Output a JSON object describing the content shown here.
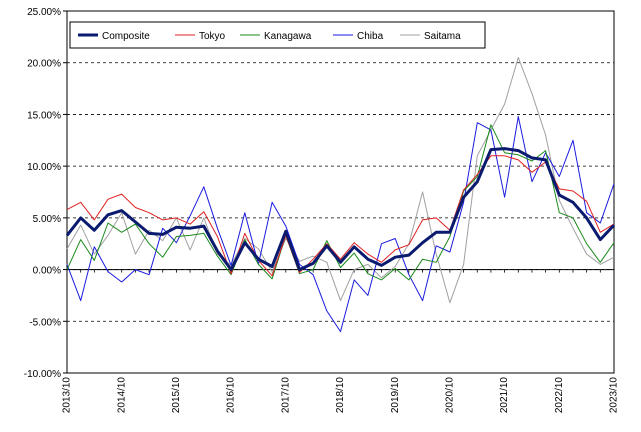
{
  "chart_data": {
    "type": "line",
    "title": "",
    "xlabel": "",
    "ylabel": "",
    "ylim": [
      -10,
      25
    ],
    "yticks": [
      -10,
      -5,
      0,
      5,
      10,
      15,
      20,
      25
    ],
    "ytick_labels": [
      "-10.00%",
      "-5.00%",
      "0.00%",
      "5.00%",
      "10.00%",
      "15.00%",
      "20.00%",
      "25.00%"
    ],
    "xlim": [
      "2013-10",
      "2023-10"
    ],
    "xtick_labels": [
      "2013/10",
      "2014/10",
      "2015/10",
      "2016/10",
      "2017/10",
      "2018/10",
      "2019/10",
      "2020/10",
      "2021/10",
      "2022/10",
      "2023/10"
    ],
    "grid": "horizontal dashed",
    "legend_position": "top-left",
    "series": [
      {
        "name": "Composite",
        "color": "#0a1a6e",
        "points": [
          [
            "2013-10",
            3.3
          ],
          [
            "2014-01",
            5.0
          ],
          [
            "2014-04",
            3.8
          ],
          [
            "2014-07",
            5.3
          ],
          [
            "2014-10",
            5.7
          ],
          [
            "2015-01",
            4.6
          ],
          [
            "2015-04",
            3.5
          ],
          [
            "2015-07",
            3.4
          ],
          [
            "2015-10",
            4.1
          ],
          [
            "2016-01",
            4.0
          ],
          [
            "2016-04",
            4.2
          ],
          [
            "2016-07",
            1.8
          ],
          [
            "2016-10",
            0.0
          ],
          [
            "2017-01",
            2.6
          ],
          [
            "2017-04",
            1.0
          ],
          [
            "2017-07",
            0.3
          ],
          [
            "2017-10",
            3.7
          ],
          [
            "2018-01",
            0.0
          ],
          [
            "2018-04",
            0.6
          ],
          [
            "2018-07",
            2.3
          ],
          [
            "2018-10",
            0.7
          ],
          [
            "2019-01",
            2.2
          ],
          [
            "2019-04",
            1.0
          ],
          [
            "2019-07",
            0.4
          ],
          [
            "2019-10",
            1.2
          ],
          [
            "2020-01",
            1.4
          ],
          [
            "2020-04",
            2.6
          ],
          [
            "2020-07",
            3.6
          ],
          [
            "2020-10",
            3.6
          ],
          [
            "2021-01",
            7.0
          ],
          [
            "2021-04",
            8.5
          ],
          [
            "2021-07",
            11.6
          ],
          [
            "2021-10",
            11.7
          ],
          [
            "2022-01",
            11.5
          ],
          [
            "2022-04",
            10.8
          ],
          [
            "2022-07",
            10.6
          ],
          [
            "2022-10",
            7.2
          ],
          [
            "2023-01",
            6.5
          ],
          [
            "2023-04",
            5.0
          ],
          [
            "2023-07",
            2.9
          ],
          [
            "2023-10",
            4.3
          ]
        ]
      },
      {
        "name": "Tokyo",
        "color": "#e02020",
        "points": [
          [
            "2013-10",
            5.8
          ],
          [
            "2014-01",
            6.5
          ],
          [
            "2014-04",
            4.8
          ],
          [
            "2014-07",
            6.8
          ],
          [
            "2014-10",
            7.3
          ],
          [
            "2015-01",
            6.0
          ],
          [
            "2015-04",
            5.5
          ],
          [
            "2015-07",
            4.8
          ],
          [
            "2015-10",
            5.0
          ],
          [
            "2016-01",
            4.4
          ],
          [
            "2016-04",
            5.6
          ],
          [
            "2016-07",
            3.2
          ],
          [
            "2016-10",
            -0.4
          ],
          [
            "2017-01",
            3.5
          ],
          [
            "2017-04",
            0.9
          ],
          [
            "2017-07",
            -0.6
          ],
          [
            "2017-10",
            3.3
          ],
          [
            "2018-01",
            -0.3
          ],
          [
            "2018-04",
            1.0
          ],
          [
            "2018-07",
            2.5
          ],
          [
            "2018-10",
            1.0
          ],
          [
            "2019-01",
            2.6
          ],
          [
            "2019-04",
            1.5
          ],
          [
            "2019-07",
            0.7
          ],
          [
            "2019-10",
            1.9
          ],
          [
            "2020-01",
            2.4
          ],
          [
            "2020-04",
            4.8
          ],
          [
            "2020-07",
            5.0
          ],
          [
            "2020-10",
            3.8
          ],
          [
            "2021-01",
            7.7
          ],
          [
            "2021-04",
            9.2
          ],
          [
            "2021-07",
            11.0
          ],
          [
            "2021-10",
            11.0
          ],
          [
            "2022-01",
            10.6
          ],
          [
            "2022-04",
            9.4
          ],
          [
            "2022-07",
            10.4
          ],
          [
            "2022-10",
            7.8
          ],
          [
            "2023-01",
            7.6
          ],
          [
            "2023-04",
            6.6
          ],
          [
            "2023-07",
            3.6
          ],
          [
            "2023-10",
            4.4
          ]
        ]
      },
      {
        "name": "Kanagawa",
        "color": "#1a8a1a",
        "points": [
          [
            "2013-10",
            0.0
          ],
          [
            "2014-01",
            2.9
          ],
          [
            "2014-04",
            0.9
          ],
          [
            "2014-07",
            4.5
          ],
          [
            "2014-10",
            3.6
          ],
          [
            "2015-01",
            4.4
          ],
          [
            "2015-04",
            2.5
          ],
          [
            "2015-07",
            1.2
          ],
          [
            "2015-10",
            3.2
          ],
          [
            "2016-01",
            3.3
          ],
          [
            "2016-04",
            3.5
          ],
          [
            "2016-07",
            1.3
          ],
          [
            "2016-10",
            -0.5
          ],
          [
            "2017-01",
            2.9
          ],
          [
            "2017-04",
            0.5
          ],
          [
            "2017-07",
            -0.9
          ],
          [
            "2017-10",
            3.3
          ],
          [
            "2018-01",
            -0.4
          ],
          [
            "2018-04",
            0.0
          ],
          [
            "2018-07",
            2.8
          ],
          [
            "2018-10",
            0.2
          ],
          [
            "2019-01",
            1.6
          ],
          [
            "2019-04",
            -0.4
          ],
          [
            "2019-07",
            -1.0
          ],
          [
            "2019-10",
            0.1
          ],
          [
            "2020-01",
            -1.0
          ],
          [
            "2020-04",
            1.0
          ],
          [
            "2020-07",
            0.7
          ],
          [
            "2020-10",
            3.2
          ],
          [
            "2021-01",
            7.6
          ],
          [
            "2021-04",
            9.0
          ],
          [
            "2021-07",
            14.0
          ],
          [
            "2021-10",
            11.3
          ],
          [
            "2022-01",
            11.1
          ],
          [
            "2022-04",
            10.5
          ],
          [
            "2022-07",
            11.5
          ],
          [
            "2022-10",
            5.5
          ],
          [
            "2023-01",
            5.0
          ],
          [
            "2023-04",
            2.5
          ],
          [
            "2023-07",
            0.7
          ],
          [
            "2023-10",
            2.6
          ]
        ]
      },
      {
        "name": "Chiba",
        "color": "#1a1ae0",
        "points": [
          [
            "2013-10",
            0.5
          ],
          [
            "2014-01",
            -3.0
          ],
          [
            "2014-04",
            2.2
          ],
          [
            "2014-07",
            -0.2
          ],
          [
            "2014-10",
            -1.2
          ],
          [
            "2015-01",
            0.0
          ],
          [
            "2015-04",
            -0.5
          ],
          [
            "2015-07",
            4.0
          ],
          [
            "2015-10",
            2.6
          ],
          [
            "2016-01",
            5.2
          ],
          [
            "2016-04",
            8.0
          ],
          [
            "2016-07",
            4.0
          ],
          [
            "2016-10",
            0.4
          ],
          [
            "2017-01",
            5.5
          ],
          [
            "2017-04",
            0.5
          ],
          [
            "2017-07",
            6.5
          ],
          [
            "2017-10",
            4.2
          ],
          [
            "2018-01",
            0.5
          ],
          [
            "2018-04",
            -0.5
          ],
          [
            "2018-07",
            -4.0
          ],
          [
            "2018-10",
            -6.0
          ],
          [
            "2019-01",
            -1.0
          ],
          [
            "2019-04",
            -2.5
          ],
          [
            "2019-07",
            2.5
          ],
          [
            "2019-10",
            3.0
          ],
          [
            "2020-01",
            -0.5
          ],
          [
            "2020-04",
            -3.0
          ],
          [
            "2020-07",
            2.3
          ],
          [
            "2020-10",
            1.7
          ],
          [
            "2021-01",
            6.5
          ],
          [
            "2021-04",
            14.2
          ],
          [
            "2021-07",
            13.5
          ],
          [
            "2021-10",
            7.0
          ],
          [
            "2022-01",
            14.8
          ],
          [
            "2022-04",
            8.5
          ],
          [
            "2022-07",
            11.3
          ],
          [
            "2022-10",
            9.0
          ],
          [
            "2023-01",
            12.5
          ],
          [
            "2023-04",
            5.5
          ],
          [
            "2023-07",
            4.5
          ],
          [
            "2023-10",
            8.3
          ]
        ]
      },
      {
        "name": "Saitama",
        "color": "#a0a0a0",
        "points": [
          [
            "2013-10",
            2.0
          ],
          [
            "2014-01",
            4.3
          ],
          [
            "2014-04",
            1.5
          ],
          [
            "2014-07",
            3.3
          ],
          [
            "2014-10",
            5.5
          ],
          [
            "2015-01",
            1.5
          ],
          [
            "2015-04",
            3.8
          ],
          [
            "2015-07",
            2.8
          ],
          [
            "2015-10",
            5.0
          ],
          [
            "2016-01",
            1.9
          ],
          [
            "2016-04",
            5.0
          ],
          [
            "2016-07",
            1.5
          ],
          [
            "2016-10",
            0.4
          ],
          [
            "2017-01",
            3.0
          ],
          [
            "2017-04",
            2.0
          ],
          [
            "2017-07",
            -0.2
          ],
          [
            "2017-10",
            3.0
          ],
          [
            "2018-01",
            0.8
          ],
          [
            "2018-04",
            1.3
          ],
          [
            "2018-07",
            0.7
          ],
          [
            "2018-10",
            -3.0
          ],
          [
            "2019-01",
            0.0
          ],
          [
            "2019-04",
            0.5
          ],
          [
            "2019-07",
            -0.8
          ],
          [
            "2019-10",
            0.3
          ],
          [
            "2020-01",
            2.5
          ],
          [
            "2020-04",
            7.5
          ],
          [
            "2020-07",
            1.5
          ],
          [
            "2020-10",
            -3.2
          ],
          [
            "2021-01",
            0.5
          ],
          [
            "2021-04",
            11.0
          ],
          [
            "2021-07",
            13.5
          ],
          [
            "2021-10",
            16.0
          ],
          [
            "2022-01",
            20.5
          ],
          [
            "2022-04",
            17.0
          ],
          [
            "2022-07",
            13.0
          ],
          [
            "2022-10",
            6.7
          ],
          [
            "2023-01",
            4.0
          ],
          [
            "2023-04",
            1.5
          ],
          [
            "2023-07",
            0.5
          ],
          [
            "2023-10",
            1.2
          ]
        ]
      }
    ]
  }
}
